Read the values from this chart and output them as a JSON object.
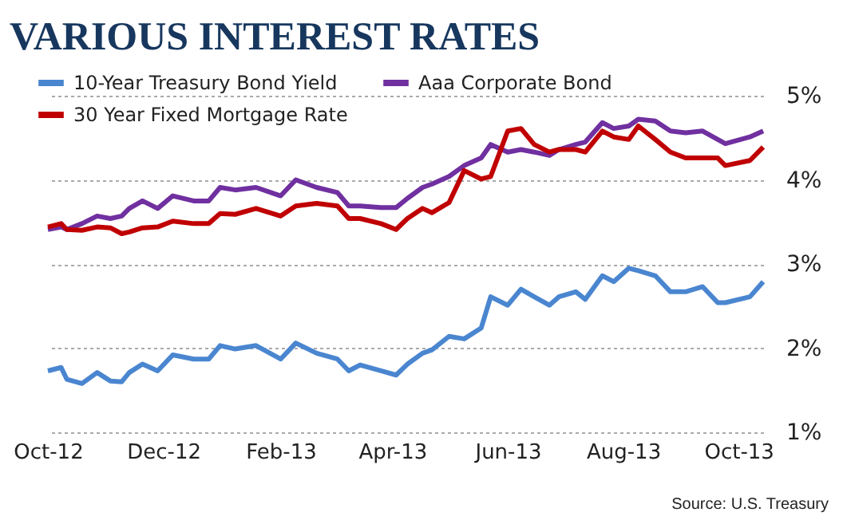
{
  "chart_data": {
    "type": "line",
    "title": "VARIOUS INTEREST RATES",
    "x": [
      "2012-10-01",
      "2012-10-08",
      "2012-10-11",
      "2012-10-19",
      "2012-10-27",
      "2012-11-03",
      "2012-11-09",
      "2012-11-13",
      "2012-11-20",
      "2012-11-28",
      "2012-12-06",
      "2012-12-17",
      "2012-12-25",
      "2012-12-31",
      "2013-01-08",
      "2013-01-19",
      "2013-02-01",
      "2013-02-09",
      "2013-02-20",
      "2013-03-03",
      "2013-03-09",
      "2013-03-15",
      "2013-03-26",
      "2013-04-03",
      "2013-04-09",
      "2013-04-17",
      "2013-04-22",
      "2013-05-01",
      "2013-05-09",
      "2013-05-18",
      "2013-05-23",
      "2013-06-01",
      "2013-06-08",
      "2013-06-15",
      "2013-06-23",
      "2013-06-28",
      "2013-07-07",
      "2013-07-12",
      "2013-07-21",
      "2013-07-27",
      "2013-08-04",
      "2013-08-09",
      "2013-08-18",
      "2013-08-26",
      "2013-09-03",
      "2013-09-12",
      "2013-09-20",
      "2013-09-24",
      "2013-10-07",
      "2013-10-14"
    ],
    "series": [
      {
        "name": "10-Year Treasury Bond Yield",
        "color": "#4a86d0",
        "values": [
          1.73,
          1.77,
          1.63,
          1.58,
          1.71,
          1.61,
          1.6,
          1.71,
          1.81,
          1.73,
          1.92,
          1.87,
          1.87,
          2.03,
          1.99,
          2.03,
          1.87,
          2.06,
          1.94,
          1.87,
          1.73,
          1.8,
          1.73,
          1.68,
          1.81,
          1.94,
          1.98,
          2.14,
          2.11,
          2.24,
          2.61,
          2.51,
          2.7,
          2.61,
          2.51,
          2.61,
          2.67,
          2.58,
          2.86,
          2.79,
          2.95,
          2.92,
          2.86,
          2.67,
          2.67,
          2.73,
          2.54,
          2.54,
          2.61,
          2.79
        ]
      },
      {
        "name": "Aaa Corporate Bond",
        "color": "#7030a0",
        "values": [
          3.41,
          3.44,
          3.41,
          3.48,
          3.57,
          3.54,
          3.57,
          3.66,
          3.75,
          3.66,
          3.81,
          3.75,
          3.75,
          3.91,
          3.88,
          3.91,
          3.81,
          4.0,
          3.91,
          3.85,
          3.69,
          3.69,
          3.67,
          3.67,
          3.78,
          3.91,
          3.95,
          4.04,
          4.17,
          4.26,
          4.42,
          4.33,
          4.36,
          4.33,
          4.29,
          4.36,
          4.42,
          4.45,
          4.68,
          4.61,
          4.64,
          4.72,
          4.7,
          4.58,
          4.56,
          4.58,
          4.48,
          4.43,
          4.51,
          4.58
        ]
      },
      {
        "name": "30 Year Fixed Mortgage Rate",
        "color": "#c00000",
        "values": [
          3.44,
          3.48,
          3.41,
          3.4,
          3.44,
          3.43,
          3.36,
          3.38,
          3.43,
          3.44,
          3.51,
          3.48,
          3.48,
          3.6,
          3.59,
          3.66,
          3.57,
          3.69,
          3.72,
          3.69,
          3.54,
          3.54,
          3.48,
          3.41,
          3.54,
          3.66,
          3.61,
          3.73,
          4.11,
          4.01,
          4.04,
          4.58,
          4.61,
          4.42,
          4.33,
          4.36,
          4.36,
          4.33,
          4.58,
          4.51,
          4.48,
          4.64,
          4.48,
          4.33,
          4.26,
          4.26,
          4.26,
          4.17,
          4.23,
          4.39
        ]
      }
    ],
    "xlim": [
      "2012-10-01",
      "2013-10-14"
    ],
    "xticks": [
      {
        "value": "2012-10-01",
        "label": "Oct-12"
      },
      {
        "value": "2012-12-01",
        "label": "Dec-12"
      },
      {
        "value": "2013-02-01",
        "label": "Feb-13"
      },
      {
        "value": "2013-04-01",
        "label": "Apr-13"
      },
      {
        "value": "2013-06-01",
        "label": "Jun-13"
      },
      {
        "value": "2013-08-01",
        "label": "Aug-13"
      },
      {
        "value": "2013-10-01",
        "label": "Oct-13"
      }
    ],
    "ylim": [
      1,
      5
    ],
    "yticks": [
      {
        "value": 1,
        "label": "1%"
      },
      {
        "value": 2,
        "label": "2%"
      },
      {
        "value": 3,
        "label": "3%"
      },
      {
        "value": 4,
        "label": "4%"
      },
      {
        "value": 5,
        "label": "5%"
      }
    ],
    "grid": "y",
    "legend": "top left",
    "marker": "none",
    "line_style": "solid",
    "annotations": [
      "Source: U.S. Treasury"
    ]
  }
}
